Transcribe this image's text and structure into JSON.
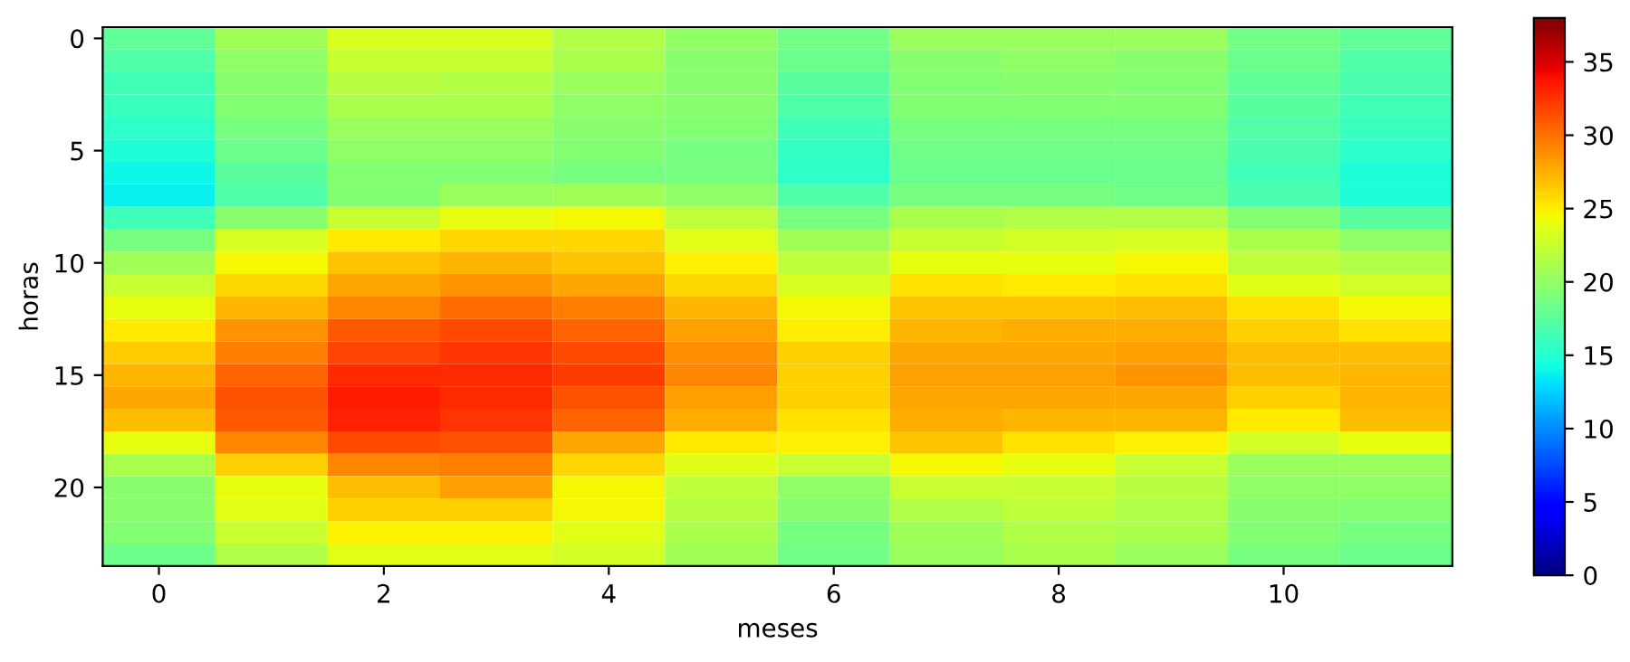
{
  "chart_data": {
    "type": "heatmap",
    "xlabel": "meses",
    "ylabel": "horas",
    "categories": [
      "0",
      null,
      "2",
      null,
      "4",
      null,
      "6",
      null,
      "8",
      null,
      "10",
      null
    ],
    "y_categories": [
      "0",
      null,
      null,
      null,
      null,
      "5",
      null,
      null,
      null,
      null,
      "10",
      null,
      null,
      null,
      null,
      "15",
      null,
      null,
      null,
      null,
      "20",
      null,
      null,
      null
    ],
    "clim": [
      0,
      38
    ],
    "cticks": [
      0,
      5,
      10,
      15,
      20,
      25,
      30,
      35
    ],
    "cells": [
      [
        17.8,
        20.7,
        23.3,
        23.3,
        21.5,
        20,
        18.5,
        20.4,
        20.4,
        20.4,
        18.5,
        17.8
      ],
      [
        17,
        20,
        22.5,
        22.5,
        21.1,
        19.6,
        18.2,
        19.6,
        20,
        19.6,
        18.2,
        17
      ],
      [
        16.3,
        19.6,
        21.8,
        21.5,
        20.4,
        19.6,
        17.5,
        19.3,
        19.6,
        19.3,
        17.8,
        16.7
      ],
      [
        15.9,
        19.3,
        21.1,
        21.1,
        20,
        19.6,
        17,
        19.3,
        19.3,
        19.3,
        17.5,
        16.3
      ],
      [
        15.3,
        18.8,
        20.4,
        20.4,
        19.6,
        19.3,
        16.3,
        18.8,
        18.8,
        18.8,
        17,
        15.9
      ],
      [
        14.8,
        18.2,
        20,
        20,
        19.3,
        18.8,
        15.7,
        18.5,
        18.5,
        18.5,
        16.7,
        15.4
      ],
      [
        14,
        17.5,
        19.3,
        19.3,
        18.8,
        18.8,
        15.4,
        18.2,
        18.2,
        18.2,
        16.3,
        14.8
      ],
      [
        13.8,
        17,
        19.3,
        20.4,
        20.7,
        20,
        17,
        18.8,
        18.8,
        18.5,
        16.7,
        14.8
      ],
      [
        16.3,
        19.6,
        22.5,
        24,
        24.5,
        22,
        18.8,
        21.1,
        21.5,
        21.5,
        19.3,
        17.5
      ],
      [
        18.8,
        23.3,
        25.2,
        25.9,
        25.9,
        23.7,
        20.7,
        22.5,
        23,
        23.3,
        21.1,
        20
      ],
      [
        20.7,
        24.5,
        26.6,
        27.2,
        26.6,
        24.8,
        22,
        24,
        24,
        24.5,
        22,
        21.5
      ],
      [
        22.5,
        25.9,
        27.8,
        28.5,
        27.8,
        25.9,
        23.3,
        25.5,
        25.2,
        25.5,
        23.7,
        23
      ],
      [
        24,
        27.2,
        29.2,
        30.2,
        29.5,
        27.2,
        24.5,
        26.6,
        26.6,
        26.9,
        25.5,
        24.5
      ],
      [
        25.2,
        28.5,
        30.9,
        31.5,
        30.5,
        28.2,
        25,
        27.2,
        27.5,
        27.5,
        26.2,
        25.5
      ],
      [
        26.4,
        29.5,
        31.8,
        32.5,
        31.5,
        28.9,
        26.2,
        27.8,
        27.8,
        28.2,
        26.9,
        26.9
      ],
      [
        27.2,
        30.5,
        32.9,
        32.9,
        32.2,
        29.2,
        26.2,
        28.2,
        28.2,
        28.5,
        26.9,
        27.2
      ],
      [
        27.8,
        31.2,
        33.5,
        32.9,
        31.2,
        28.2,
        26.2,
        27.8,
        27.8,
        27.8,
        26.2,
        27.2
      ],
      [
        26.9,
        30.9,
        33.2,
        32.5,
        30.5,
        27.5,
        25.5,
        27.5,
        27.2,
        27.2,
        25.2,
        26.9
      ],
      [
        24,
        29.2,
        31.5,
        31.2,
        27.8,
        25.2,
        24.8,
        26.6,
        25.5,
        24.8,
        23,
        24
      ],
      [
        21.1,
        26.2,
        29.2,
        29.5,
        25.9,
        23.7,
        22.5,
        24.5,
        24,
        22.5,
        20.4,
        20.4
      ],
      [
        19.6,
        24,
        26.9,
        28.2,
        24.5,
        22,
        20,
        22.5,
        22.5,
        21.8,
        20,
        20
      ],
      [
        19.6,
        23.7,
        26.2,
        26.2,
        24.5,
        21.8,
        19.6,
        21.5,
        22,
        21.5,
        19.6,
        19.3
      ],
      [
        19.3,
        22.5,
        24.8,
        24.8,
        23.7,
        21.1,
        18.8,
        20.7,
        21.5,
        21.1,
        19.3,
        18.8
      ],
      [
        18.3,
        21.5,
        23.7,
        23.7,
        23,
        20.7,
        18.5,
        20.4,
        21.1,
        20.4,
        18.8,
        18.2
      ]
    ]
  }
}
